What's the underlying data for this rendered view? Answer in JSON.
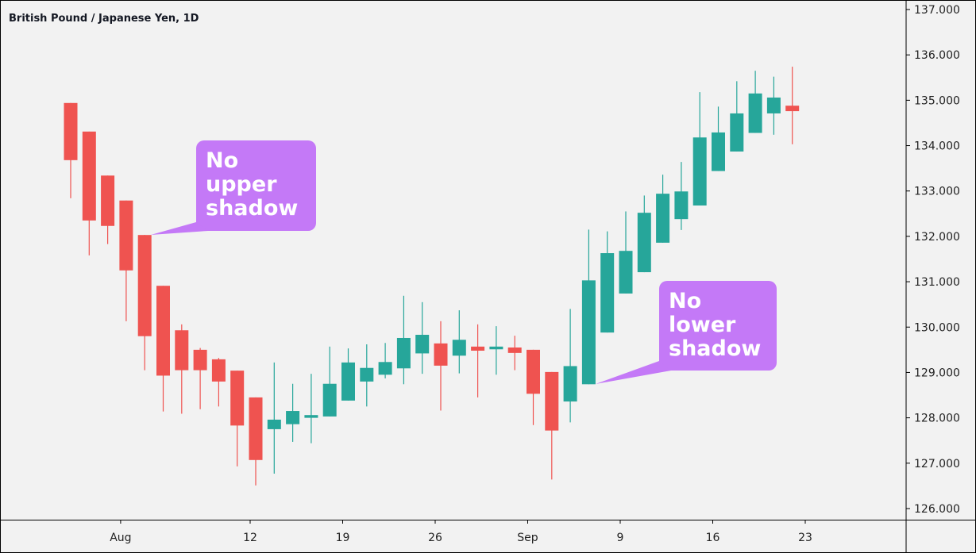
{
  "chart_data": {
    "type": "candlestick",
    "title": "British Pound / Japanese Yen, 1D",
    "ylim": [
      126,
      137
    ],
    "yticks": [
      "126.000",
      "127.000",
      "128.000",
      "129.000",
      "130.000",
      "131.000",
      "132.000",
      "133.000",
      "134.000",
      "135.000",
      "136.000",
      "137.000"
    ],
    "xticks": [
      {
        "label": "Aug",
        "index": 3
      },
      {
        "label": "12",
        "index": 10
      },
      {
        "label": "19",
        "index": 15
      },
      {
        "label": "26",
        "index": 20
      },
      {
        "label": "Sep",
        "index": 25
      },
      {
        "label": "9",
        "index": 30
      },
      {
        "label": "16",
        "index": 35
      },
      {
        "label": "23",
        "index": 40
      }
    ],
    "colors": {
      "up": "#26a69a",
      "down": "#ef5350",
      "callout": "#c479f7",
      "background": "#f2f2f2"
    },
    "candles": [
      {
        "o": 134.94,
        "h": 134.94,
        "l": 132.84,
        "c": 133.68
      },
      {
        "o": 134.31,
        "h": 134.31,
        "l": 131.58,
        "c": 132.35
      },
      {
        "o": 133.34,
        "h": 133.34,
        "l": 131.83,
        "c": 132.23
      },
      {
        "o": 132.79,
        "h": 132.79,
        "l": 130.13,
        "c": 131.25
      },
      {
        "o": 132.03,
        "h": 132.03,
        "l": 129.05,
        "c": 129.8
      },
      {
        "o": 130.91,
        "h": 130.91,
        "l": 128.14,
        "c": 128.93
      },
      {
        "o": 129.93,
        "h": 130.06,
        "l": 128.09,
        "c": 129.05
      },
      {
        "o": 129.5,
        "h": 129.54,
        "l": 128.19,
        "c": 129.05
      },
      {
        "o": 129.29,
        "h": 129.32,
        "l": 128.25,
        "c": 128.8
      },
      {
        "o": 129.04,
        "h": 129.04,
        "l": 126.93,
        "c": 127.83
      },
      {
        "o": 128.45,
        "h": 128.45,
        "l": 126.51,
        "c": 127.07
      },
      {
        "o": 127.75,
        "h": 129.22,
        "l": 126.77,
        "c": 127.96
      },
      {
        "o": 127.86,
        "h": 128.75,
        "l": 127.47,
        "c": 128.15
      },
      {
        "o": 128.0,
        "h": 128.97,
        "l": 127.44,
        "c": 128.06
      },
      {
        "o": 128.03,
        "h": 129.57,
        "l": 128.03,
        "c": 128.75
      },
      {
        "o": 128.38,
        "h": 129.53,
        "l": 128.38,
        "c": 129.22
      },
      {
        "o": 128.8,
        "h": 129.62,
        "l": 128.25,
        "c": 129.1
      },
      {
        "o": 128.95,
        "h": 129.65,
        "l": 128.87,
        "c": 129.23
      },
      {
        "o": 129.09,
        "h": 130.69,
        "l": 128.74,
        "c": 129.76
      },
      {
        "o": 129.42,
        "h": 130.55,
        "l": 128.97,
        "c": 129.83
      },
      {
        "o": 129.64,
        "h": 130.13,
        "l": 128.16,
        "c": 129.15
      },
      {
        "o": 129.37,
        "h": 130.37,
        "l": 128.98,
        "c": 129.72
      },
      {
        "o": 129.57,
        "h": 130.06,
        "l": 128.45,
        "c": 129.48
      },
      {
        "o": 129.51,
        "h": 130.02,
        "l": 128.95,
        "c": 129.57
      },
      {
        "o": 129.55,
        "h": 129.81,
        "l": 129.05,
        "c": 129.43
      },
      {
        "o": 129.5,
        "h": 129.5,
        "l": 127.84,
        "c": 128.53
      },
      {
        "o": 129.01,
        "h": 129.01,
        "l": 126.64,
        "c": 127.72
      },
      {
        "o": 128.36,
        "h": 130.4,
        "l": 127.9,
        "c": 129.14
      },
      {
        "o": 128.74,
        "h": 132.15,
        "l": 128.74,
        "c": 131.03
      },
      {
        "o": 129.88,
        "h": 132.11,
        "l": 129.88,
        "c": 131.63
      },
      {
        "o": 130.74,
        "h": 132.55,
        "l": 130.74,
        "c": 131.68
      },
      {
        "o": 131.21,
        "h": 132.9,
        "l": 131.21,
        "c": 132.52
      },
      {
        "o": 131.86,
        "h": 133.36,
        "l": 131.86,
        "c": 132.94
      },
      {
        "o": 132.38,
        "h": 133.64,
        "l": 132.14,
        "c": 132.99
      },
      {
        "o": 132.68,
        "h": 135.18,
        "l": 132.68,
        "c": 134.18
      },
      {
        "o": 133.44,
        "h": 134.86,
        "l": 133.44,
        "c": 134.29
      },
      {
        "o": 133.87,
        "h": 135.42,
        "l": 133.87,
        "c": 134.71
      },
      {
        "o": 134.28,
        "h": 135.65,
        "l": 134.28,
        "c": 135.15
      },
      {
        "o": 134.71,
        "h": 135.52,
        "l": 134.24,
        "c": 135.06
      },
      {
        "o": 134.88,
        "h": 135.74,
        "l": 134.03,
        "c": 134.76
      }
    ],
    "annotations": [
      {
        "lines": [
          "No",
          "upper",
          "shadow"
        ],
        "candle_index": 4
      },
      {
        "lines": [
          "No",
          "lower",
          "shadow"
        ],
        "candle_index": 28
      }
    ]
  }
}
